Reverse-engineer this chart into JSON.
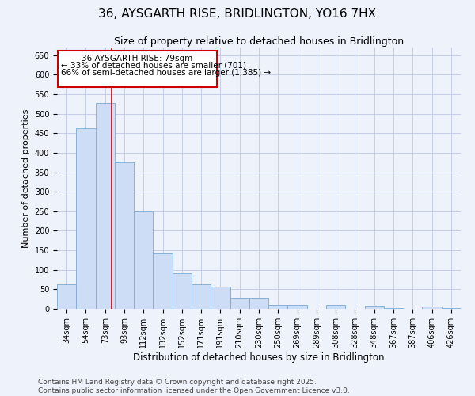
{
  "title": "36, AYSGARTH RISE, BRIDLINGTON, YO16 7HX",
  "subtitle": "Size of property relative to detached houses in Bridlington",
  "xlabel": "Distribution of detached houses by size in Bridlington",
  "ylabel": "Number of detached properties",
  "categories": [
    "34sqm",
    "54sqm",
    "73sqm",
    "93sqm",
    "112sqm",
    "132sqm",
    "152sqm",
    "171sqm",
    "191sqm",
    "210sqm",
    "230sqm",
    "250sqm",
    "269sqm",
    "289sqm",
    "308sqm",
    "328sqm",
    "348sqm",
    "367sqm",
    "387sqm",
    "406sqm",
    "426sqm"
  ],
  "values": [
    62,
    462,
    528,
    375,
    250,
    143,
    92,
    63,
    56,
    28,
    28,
    11,
    11,
    0,
    11,
    0,
    8,
    2,
    0,
    6,
    2
  ],
  "bar_color": "#ccddf5",
  "bar_edge_color": "#7aaad4",
  "red_line_index": 2,
  "red_line_color": "#cc0000",
  "annotation_line1": "36 AYSGARTH RISE: 79sqm",
  "annotation_line2": "← 33% of detached houses are smaller (701)",
  "annotation_line3": "66% of semi-detached houses are larger (1,385) →",
  "annotation_box_color": "#ffffff",
  "annotation_box_edge": "#cc0000",
  "ylim": [
    0,
    670
  ],
  "yticks": [
    0,
    50,
    100,
    150,
    200,
    250,
    300,
    350,
    400,
    450,
    500,
    550,
    600,
    650
  ],
  "footnote": "Contains HM Land Registry data © Crown copyright and database right 2025.\nContains public sector information licensed under the Open Government Licence v3.0.",
  "background_color": "#eef2fb",
  "grid_color": "#c5cde8",
  "title_fontsize": 11,
  "subtitle_fontsize": 9,
  "ylabel_fontsize": 8,
  "xlabel_fontsize": 8.5,
  "tick_fontsize": 7,
  "annot_fontsize": 7.5,
  "footnote_fontsize": 6.5
}
